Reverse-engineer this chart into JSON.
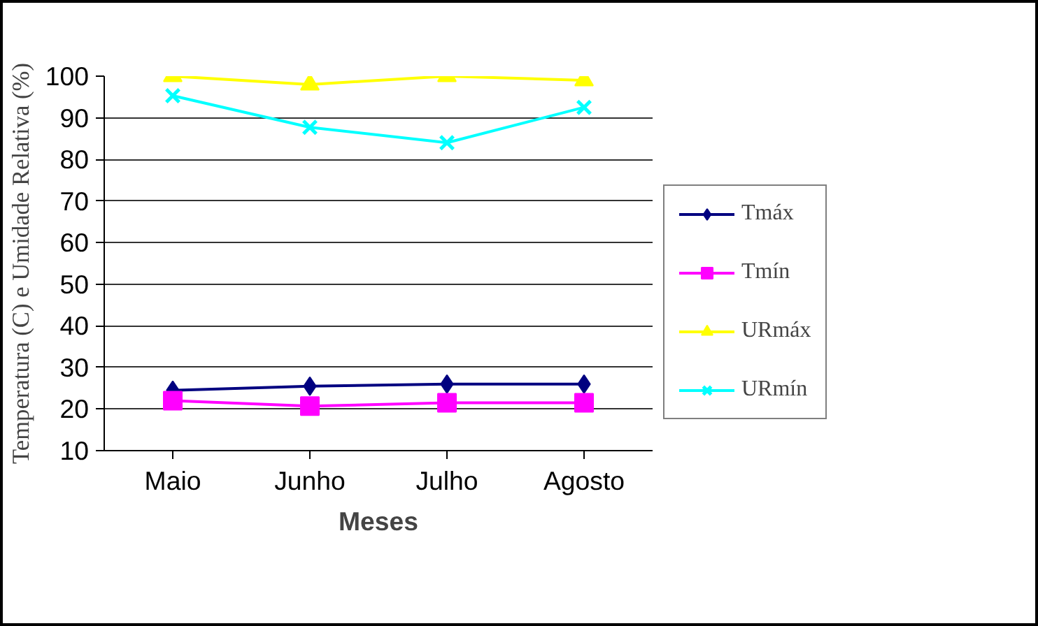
{
  "chart_data": {
    "type": "line",
    "xlabel": "Meses",
    "ylabel": "Temperatura (C) e Umidade Relativa (%)",
    "categories": [
      "Maio",
      "Junho",
      "Julho",
      "Agosto"
    ],
    "ylim": [
      10,
      100
    ],
    "yticks": [
      10,
      20,
      30,
      40,
      50,
      60,
      70,
      80,
      90,
      100
    ],
    "grid": "y",
    "legend": "right",
    "series": [
      {
        "name": "Tmáx",
        "color": "#000080",
        "marker": "diamond",
        "values": [
          24.5,
          25.5,
          26,
          26
        ]
      },
      {
        "name": "Tmín",
        "color": "#ff00ff",
        "marker": "square",
        "values": [
          22,
          20.7,
          21.5,
          21.5
        ]
      },
      {
        "name": "URmáx",
        "color": "#ffff00",
        "marker": "triangle",
        "values": [
          100,
          98,
          100,
          99
        ]
      },
      {
        "name": "URmín",
        "color": "#00ffff",
        "marker": "cross",
        "values": [
          95.3,
          87.7,
          84,
          92.5
        ]
      }
    ]
  }
}
